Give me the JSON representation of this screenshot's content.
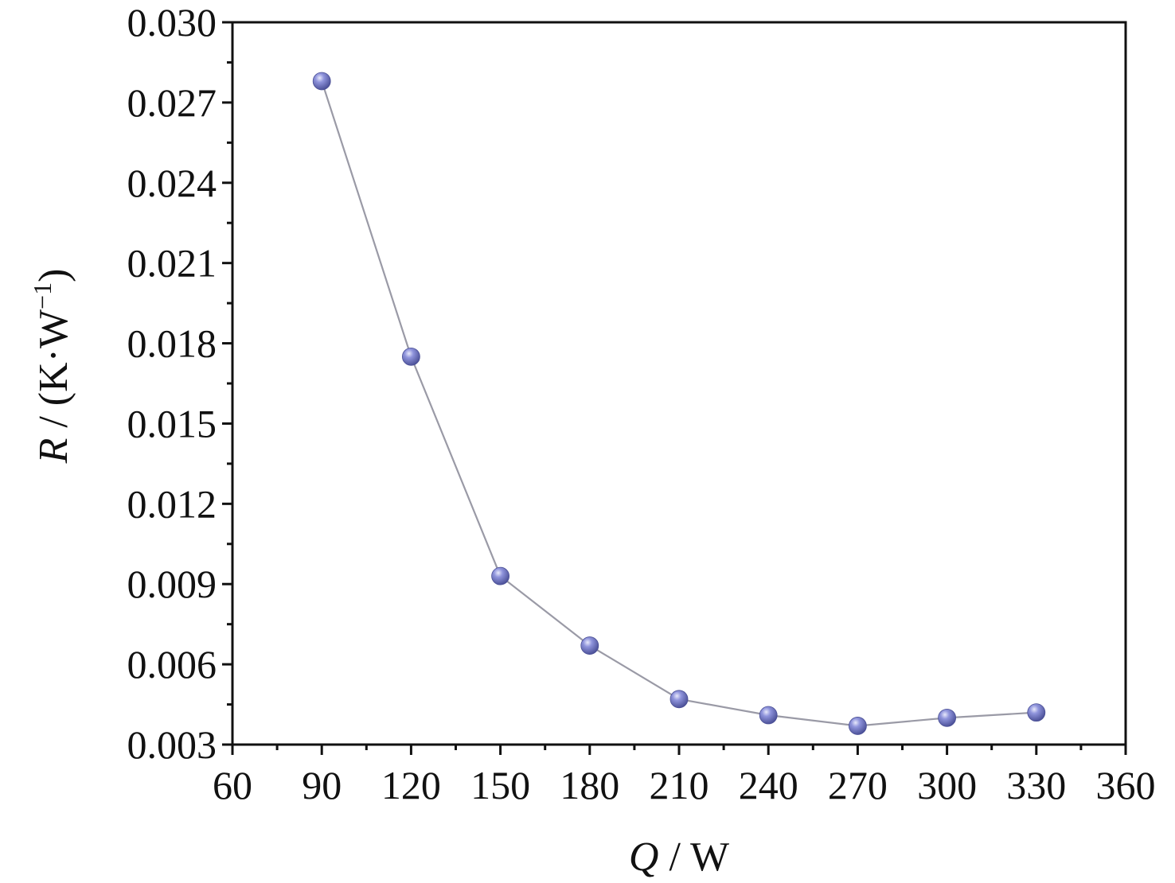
{
  "chart_data": {
    "type": "line",
    "title": "",
    "xlabel": {
      "italic": "Q",
      "rest": " / W"
    },
    "ylabel": {
      "italic": "R",
      "rest": " / (K·W",
      "sup": "−1",
      "close": ")"
    },
    "xlim": [
      60,
      360
    ],
    "ylim": [
      0.003,
      0.03
    ],
    "x_ticks": [
      "60",
      "90",
      "120",
      "150",
      "180",
      "210",
      "240",
      "270",
      "300",
      "330",
      "360"
    ],
    "y_ticks": [
      "0.003",
      "0.006",
      "0.009",
      "0.012",
      "0.015",
      "0.018",
      "0.021",
      "0.024",
      "0.027",
      "0.030"
    ],
    "grid": false,
    "series": [
      {
        "marker": "sphere",
        "marker_color": "#7b80c8",
        "line_color": "#9a9aa6",
        "x": [
          90,
          120,
          150,
          180,
          210,
          240,
          270,
          300,
          330
        ],
        "y": [
          0.0278,
          0.0175,
          0.0093,
          0.0067,
          0.0047,
          0.0041,
          0.0037,
          0.004,
          0.0042
        ]
      }
    ]
  }
}
